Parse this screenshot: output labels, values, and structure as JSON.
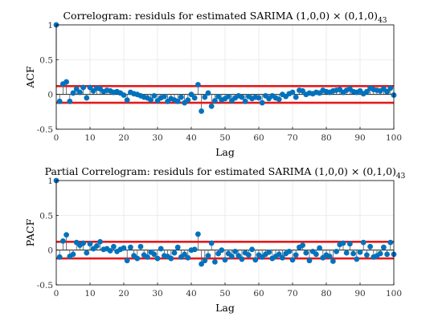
{
  "chart_data": [
    {
      "type": "stem",
      "title": "Correlogram: residuls for estimated SARIMA (1,0,0) × (0,1,0)",
      "title_subscript": "43",
      "xlabel": "Lag",
      "ylabel": "ACF",
      "xlim": [
        0,
        100
      ],
      "ylim": [
        -0.5,
        1
      ],
      "xticks": [
        "0",
        "10",
        "20",
        "30",
        "40",
        "50",
        "60",
        "70",
        "80",
        "90",
        "100"
      ],
      "yticks": [
        "-0.5",
        "0",
        "0.5",
        "1"
      ],
      "grid": true,
      "marker_color": "#0072BD",
      "bound_color": "#E41A1C",
      "confidence_bounds": [
        0.12,
        -0.12
      ],
      "x": [
        0,
        1,
        2,
        3,
        4,
        5,
        6,
        7,
        8,
        9,
        10,
        11,
        12,
        13,
        14,
        15,
        16,
        17,
        18,
        19,
        20,
        21,
        22,
        23,
        24,
        25,
        26,
        27,
        28,
        29,
        30,
        31,
        32,
        33,
        34,
        35,
        36,
        37,
        38,
        39,
        40,
        41,
        42,
        43,
        44,
        45,
        46,
        47,
        48,
        49,
        50,
        51,
        52,
        53,
        54,
        55,
        56,
        57,
        58,
        59,
        60,
        61,
        62,
        63,
        64,
        65,
        66,
        67,
        68,
        69,
        70,
        71,
        72,
        73,
        74,
        75,
        76,
        77,
        78,
        79,
        80,
        81,
        82,
        83,
        84,
        85,
        86,
        87,
        88,
        89,
        90,
        91,
        92,
        93,
        94,
        95,
        96,
        97,
        98,
        99,
        100
      ],
      "values": [
        1.0,
        -0.1,
        0.15,
        0.18,
        -0.1,
        0.02,
        0.08,
        0.03,
        0.1,
        -0.05,
        0.1,
        0.05,
        0.09,
        0.08,
        0.04,
        0.06,
        0.05,
        0.03,
        0.04,
        0.02,
        -0.01,
        -0.08,
        0.03,
        0.01,
        0.0,
        -0.02,
        -0.04,
        -0.05,
        -0.08,
        -0.02,
        -0.09,
        -0.05,
        -0.03,
        -0.1,
        -0.06,
        -0.08,
        -0.1,
        -0.04,
        -0.12,
        -0.08,
        0.0,
        -0.05,
        0.14,
        -0.24,
        -0.04,
        0.02,
        -0.17,
        -0.09,
        -0.03,
        -0.08,
        -0.06,
        -0.03,
        -0.09,
        -0.05,
        -0.02,
        -0.04,
        -0.1,
        -0.03,
        -0.06,
        -0.04,
        -0.05,
        -0.12,
        -0.02,
        -0.06,
        -0.02,
        -0.05,
        -0.07,
        0.0,
        -0.03,
        0.01,
        0.03,
        -0.04,
        0.06,
        0.05,
        0.0,
        0.02,
        0.01,
        0.03,
        0.02,
        0.06,
        0.04,
        0.03,
        0.05,
        0.06,
        0.07,
        0.03,
        0.06,
        0.08,
        0.04,
        0.03,
        0.05,
        0.01,
        0.04,
        0.09,
        0.07,
        0.06,
        0.05,
        0.08,
        0.04,
        0.09,
        -0.01
      ]
    },
    {
      "type": "stem",
      "title": "Partial Correlogram: residuls for estimated SARIMA (1,0,0) × (0,1,0)",
      "title_subscript": "43",
      "xlabel": "Lag",
      "ylabel": "PACF",
      "xlim": [
        0,
        100
      ],
      "ylim": [
        -0.5,
        1
      ],
      "xticks": [
        "0",
        "10",
        "20",
        "30",
        "40",
        "50",
        "60",
        "70",
        "80",
        "90",
        "100"
      ],
      "yticks": [
        "-0.5",
        "0",
        "0.5",
        "1"
      ],
      "grid": true,
      "marker_color": "#0072BD",
      "bound_color": "#E41A1C",
      "confidence_bounds": [
        0.12,
        -0.12
      ],
      "x": [
        0,
        1,
        2,
        3,
        4,
        5,
        6,
        7,
        8,
        9,
        10,
        11,
        12,
        13,
        14,
        15,
        16,
        17,
        18,
        19,
        20,
        21,
        22,
        23,
        24,
        25,
        26,
        27,
        28,
        29,
        30,
        31,
        32,
        33,
        34,
        35,
        36,
        37,
        38,
        39,
        40,
        41,
        42,
        43,
        44,
        45,
        46,
        47,
        48,
        49,
        50,
        51,
        52,
        53,
        54,
        55,
        56,
        57,
        58,
        59,
        60,
        61,
        62,
        63,
        64,
        65,
        66,
        67,
        68,
        69,
        70,
        71,
        72,
        73,
        74,
        75,
        76,
        77,
        78,
        79,
        80,
        81,
        82,
        83,
        84,
        85,
        86,
        87,
        88,
        89,
        90,
        91,
        92,
        93,
        94,
        95,
        96,
        97,
        98,
        99,
        100
      ],
      "values": [
        1.0,
        -0.1,
        0.13,
        0.22,
        -0.09,
        -0.06,
        0.11,
        0.07,
        0.1,
        -0.04,
        0.09,
        0.02,
        0.06,
        0.12,
        0.01,
        0.02,
        -0.01,
        0.05,
        -0.02,
        0.01,
        0.03,
        -0.15,
        0.04,
        -0.08,
        -0.12,
        0.05,
        -0.07,
        -0.1,
        -0.03,
        -0.06,
        -0.12,
        0.02,
        -0.08,
        -0.09,
        -0.12,
        -0.04,
        0.04,
        -0.1,
        -0.06,
        -0.11,
        0.0,
        0.01,
        0.23,
        -0.2,
        -0.15,
        -0.08,
        0.1,
        -0.17,
        -0.05,
        0.0,
        -0.14,
        -0.05,
        -0.09,
        -0.02,
        -0.08,
        -0.13,
        -0.04,
        -0.07,
        0.01,
        -0.14,
        -0.07,
        -0.1,
        -0.06,
        -0.03,
        -0.12,
        -0.09,
        -0.06,
        -0.11,
        -0.05,
        -0.02,
        -0.14,
        -0.07,
        0.04,
        0.07,
        -0.04,
        -0.15,
        -0.02,
        -0.06,
        0.03,
        -0.11,
        -0.07,
        -0.09,
        -0.16,
        -0.02,
        0.08,
        0.1,
        -0.04,
        0.09,
        -0.05,
        -0.13,
        -0.03,
        0.11,
        -0.07,
        0.05,
        -0.1,
        -0.08,
        -0.05,
        0.04,
        -0.06,
        0.11,
        -0.06
      ]
    }
  ]
}
